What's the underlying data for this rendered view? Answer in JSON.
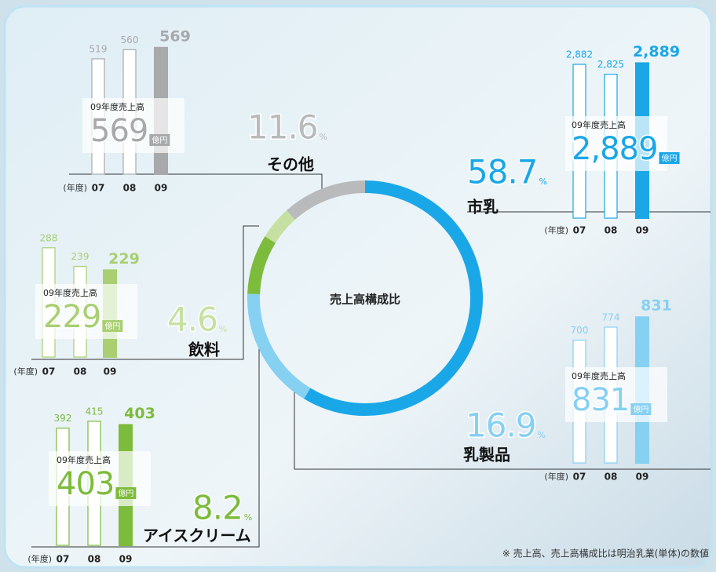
{
  "chart_data": [
    {
      "type": "pie",
      "title": "売上高構成比",
      "unit": "%",
      "categories": [
        "市乳",
        "乳製品",
        "アイスクリーム",
        "飲料",
        "その他"
      ],
      "values": [
        58.7,
        16.9,
        8.2,
        4.6,
        11.6
      ],
      "colors": [
        "#1aa7e8",
        "#86d0f2",
        "#7dbb3c",
        "#c6e0a2",
        "#b9babc"
      ]
    },
    {
      "type": "bar",
      "x_label": "(年度)",
      "categories": [
        "07",
        "08",
        "09"
      ],
      "values": [
        2882,
        2825,
        2889
      ],
      "value_labels": [
        "2,882",
        "2,825",
        "2,889"
      ],
      "color": "#1aa7e8",
      "ylim": [
        2000,
        2900
      ],
      "annotation": "09年度売上高",
      "unit": "億円"
    },
    {
      "type": "bar",
      "x_label": "(年度)",
      "categories": [
        "07",
        "08",
        "09"
      ],
      "values": [
        700,
        774,
        831
      ],
      "color": "#86d0f2",
      "ylim": [
        0,
        850
      ],
      "annotation": "09年度売上高",
      "unit": "億円"
    },
    {
      "type": "bar",
      "x_label": "(年度)",
      "categories": [
        "07",
        "08",
        "09"
      ],
      "values": [
        392,
        415,
        403
      ],
      "color": "#7dbb3c",
      "ylim": [
        0,
        420
      ],
      "annotation": "09年度売上高",
      "unit": "億円"
    },
    {
      "type": "bar",
      "x_label": "(年度)",
      "categories": [
        "07",
        "08",
        "09"
      ],
      "values": [
        288,
        239,
        229
      ],
      "color": "#a9cf72",
      "ylim": [
        0,
        300
      ],
      "annotation": "09年度売上高",
      "unit": "億円"
    },
    {
      "type": "bar",
      "x_label": "(年度)",
      "categories": [
        "07",
        "08",
        "09"
      ],
      "values": [
        519,
        560,
        569
      ],
      "color": "#a8a9ab",
      "ylim": [
        0,
        600
      ],
      "annotation": "09年度売上高",
      "unit": "億円"
    }
  ],
  "footnote": "※ 売上高、売上高構成比は明治乳業(単体)の数値"
}
